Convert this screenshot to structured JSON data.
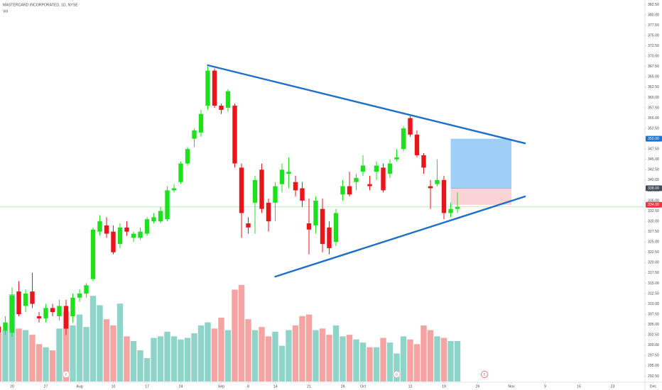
{
  "chart_data": {
    "type": "candlestick",
    "title": "MASTERCARD INCORPORATED, 1D, NYSE",
    "volume_label": "Vol",
    "x": [
      "2020-07-16",
      "2020-07-17",
      "2020-07-20",
      "2020-07-21",
      "2020-07-22",
      "2020-07-23",
      "2020-07-24",
      "2020-07-27",
      "2020-07-28",
      "2020-07-29",
      "2020-07-30",
      "2020-07-31",
      "2020-08-03",
      "2020-08-04",
      "2020-08-05",
      "2020-08-06",
      "2020-08-07",
      "2020-08-10",
      "2020-08-11",
      "2020-08-12",
      "2020-08-13",
      "2020-08-14",
      "2020-08-17",
      "2020-08-18",
      "2020-08-19",
      "2020-08-20",
      "2020-08-21",
      "2020-08-24",
      "2020-08-25",
      "2020-08-26",
      "2020-08-27",
      "2020-08-28",
      "2020-08-31",
      "2020-09-01",
      "2020-09-02",
      "2020-09-03",
      "2020-09-04",
      "2020-09-08",
      "2020-09-09",
      "2020-09-10",
      "2020-09-11",
      "2020-09-14",
      "2020-09-15",
      "2020-09-16",
      "2020-09-17",
      "2020-09-18",
      "2020-09-21",
      "2020-09-22",
      "2020-09-23",
      "2020-09-24",
      "2020-09-25",
      "2020-09-28",
      "2020-09-29",
      "2020-09-30",
      "2020-10-01",
      "2020-10-02",
      "2020-10-05",
      "2020-10-06",
      "2020-10-07",
      "2020-10-08",
      "2020-10-09",
      "2020-10-12",
      "2020-10-13",
      "2020-10-14",
      "2020-10-15",
      "2020-10-16",
      "2020-10-19",
      "2020-10-20",
      "2020-10-21"
    ],
    "open": [
      304.5,
      303.5,
      303,
      313,
      309.5,
      313,
      307,
      306.5,
      309,
      307,
      309.5,
      307,
      311.5,
      312.5,
      316,
      327.5,
      329,
      327.5,
      324.5,
      328.5,
      326,
      326,
      327,
      330,
      330,
      330.5,
      337.5,
      339.5,
      344,
      350,
      351.5,
      358,
      366.5,
      358,
      357.5,
      358,
      343,
      329.5,
      334.5,
      342.5,
      334.5,
      334.5,
      339,
      341.5,
      339.5,
      338,
      329.5,
      329,
      333,
      328.5,
      325,
      336.5,
      338.5,
      339.5,
      342,
      339,
      342,
      343,
      341.5,
      345,
      347.5,
      355,
      351,
      346,
      338.5,
      339,
      340,
      332,
      333
    ],
    "high": [
      306,
      307,
      314,
      315.5,
      313.5,
      317.5,
      308,
      310,
      310,
      311,
      311,
      312.5,
      313.5,
      315,
      328.5,
      331.5,
      331,
      329,
      329.5,
      330,
      327.5,
      328.5,
      331,
      332,
      333.5,
      338.5,
      339,
      344.5,
      348,
      352.5,
      357,
      367.5,
      367,
      358.5,
      362,
      358.5,
      344,
      331,
      341,
      344,
      335.5,
      339.5,
      344,
      345.5,
      341,
      339.5,
      335.5,
      336,
      335.5,
      330,
      333,
      340,
      342,
      341.5,
      346,
      341,
      344.5,
      344,
      345,
      347.5,
      353,
      355.5,
      352,
      346.5,
      340,
      345,
      341,
      334.5,
      337
    ],
    "low": [
      301.5,
      302.5,
      302,
      307,
      308,
      309,
      305.5,
      305.5,
      307,
      306,
      302.5,
      305.5,
      310.5,
      311.5,
      315.5,
      326.5,
      326,
      322,
      323.5,
      326.5,
      325,
      325.5,
      326.5,
      329.5,
      329.5,
      330,
      337,
      339,
      343.5,
      348,
      350.5,
      357,
      357.5,
      356,
      356.5,
      343,
      326,
      327,
      327,
      332,
      327.5,
      330,
      337,
      338,
      336,
      333.5,
      322,
      327,
      322.5,
      322,
      324,
      335,
      336,
      337.5,
      341,
      337.5,
      340,
      337,
      340.5,
      344.5,
      347,
      350.5,
      345.5,
      341.5,
      333,
      338.5,
      330.5,
      331,
      332
    ],
    "close": [
      303,
      305.5,
      312,
      307.5,
      312.5,
      310,
      306.5,
      309,
      308,
      309.5,
      304,
      311.5,
      312.5,
      314.5,
      328,
      330,
      327,
      322.5,
      328.5,
      327.5,
      327,
      327.5,
      330.5,
      331,
      332.5,
      337.5,
      338,
      344,
      347.5,
      352,
      356,
      366.5,
      358,
      357,
      361.5,
      344,
      332,
      328.5,
      340,
      333,
      330,
      338.5,
      342.5,
      342,
      337.5,
      335,
      328,
      335,
      324.5,
      323.5,
      332,
      338.5,
      336.5,
      340.5,
      343.5,
      338.5,
      343.5,
      337.5,
      344,
      345.5,
      352.5,
      351,
      346,
      343,
      338,
      340,
      332,
      333,
      333.5
    ],
    "volume": [
      3.1,
      3.3,
      5.6,
      3.4,
      3.3,
      3.0,
      2.4,
      2.2,
      2.0,
      3.4,
      4.5,
      3.6,
      4.3,
      3.5,
      5.5,
      4.9,
      4.0,
      3.6,
      5.0,
      2.9,
      2.6,
      2.0,
      1.5,
      2.8,
      2.9,
      3.2,
      2.9,
      2.7,
      2.8,
      3.1,
      3.6,
      3.8,
      3.4,
      4.1,
      3.3,
      5.9,
      6.2,
      4.0,
      3.3,
      3.5,
      2.9,
      3.2,
      2.3,
      3.3,
      3.6,
      4.2,
      4.3,
      3.3,
      3.4,
      3.0,
      3.6,
      2.9,
      3.0,
      2.7,
      2.5,
      2.2,
      2.2,
      2.8,
      2.5,
      1.8,
      2.9,
      2.7,
      2.4,
      3.6,
      3.3,
      2.9,
      2.8,
      2.6,
      2.6
    ],
    "volume_lim": [
      0,
      24.5
    ],
    "up_color": "#1ee01e",
    "down_color": "#e8161b",
    "volume_up_color": "#8ed4c9",
    "volume_down_color": "#f5a3a3",
    "ylim": [
      291.2,
      383.6
    ],
    "yticks": [
      {
        "value": 292.5,
        "label": "292.50"
      },
      {
        "value": 295,
        "label": "295.00"
      },
      {
        "value": 297.5,
        "label": "297.50"
      },
      {
        "value": 300,
        "label": "300.00"
      },
      {
        "value": 302.5,
        "label": "302.50"
      },
      {
        "value": 305,
        "label": "305.00"
      },
      {
        "value": 307.5,
        "label": "307.50"
      },
      {
        "value": 310,
        "label": "310.00"
      },
      {
        "value": 312.5,
        "label": "312.50"
      },
      {
        "value": 315,
        "label": "315.00"
      },
      {
        "value": 317.5,
        "label": "317.50"
      },
      {
        "value": 320,
        "label": "320.00"
      },
      {
        "value": 322.5,
        "label": "322.50"
      },
      {
        "value": 325,
        "label": "325.00"
      },
      {
        "value": 327.5,
        "label": "327.50"
      },
      {
        "value": 330,
        "label": "330.00"
      },
      {
        "value": 332.5,
        "label": "332.50"
      },
      {
        "value": 335,
        "label": "335.00"
      },
      {
        "value": 337.5,
        "label": "337.50"
      },
      {
        "value": 340,
        "label": "340.00"
      },
      {
        "value": 342.5,
        "label": "342.50"
      },
      {
        "value": 345,
        "label": "345.00"
      },
      {
        "value": 347.5,
        "label": "347.50"
      },
      {
        "value": 350,
        "label": "350.00"
      },
      {
        "value": 352.5,
        "label": "352.50"
      },
      {
        "value": 355,
        "label": "355.00"
      },
      {
        "value": 357.5,
        "label": "357.50"
      },
      {
        "value": 360,
        "label": "360.00"
      },
      {
        "value": 362.5,
        "label": "362.50"
      },
      {
        "value": 365,
        "label": "365.00"
      },
      {
        "value": 367.5,
        "label": "367.50"
      },
      {
        "value": 370,
        "label": "370.00"
      },
      {
        "value": 372.5,
        "label": "372.50"
      },
      {
        "value": 375,
        "label": "375.00"
      },
      {
        "value": 377.5,
        "label": "377.50"
      },
      {
        "value": 380,
        "label": "380.00"
      },
      {
        "value": 382.5,
        "label": "382.50"
      }
    ],
    "xticks": [
      {
        "value": "2020-07-20",
        "label": "20"
      },
      {
        "value": "2020-07-27",
        "label": "27"
      },
      {
        "value": "2020-08-03",
        "label": "Aug"
      },
      {
        "value": "2020-08-10",
        "label": "10"
      },
      {
        "value": "2020-08-17",
        "label": "17"
      },
      {
        "value": "2020-08-24",
        "label": "24"
      },
      {
        "value": "2020-09-01",
        "label": "Sep"
      },
      {
        "value": "2020-09-08",
        "label": "8"
      },
      {
        "value": "2020-09-14",
        "label": "14"
      },
      {
        "value": "2020-09-21",
        "label": "21"
      },
      {
        "value": "2020-09-28",
        "label": "28"
      },
      {
        "value": "2020-10-01",
        "label": "Oct"
      },
      {
        "value": "2020-10-12",
        "label": "12"
      },
      {
        "value": "2020-10-19",
        "label": "19"
      },
      {
        "value": "2020-10-26",
        "label": "26"
      },
      {
        "value": "2020-11-02",
        "label": "Nov"
      },
      {
        "value": "2020-11-09",
        "label": "9"
      },
      {
        "value": "2020-11-16",
        "label": "16"
      },
      {
        "value": "2020-11-23",
        "label": "23"
      },
      {
        "value": "2020-12-01",
        "label": "Dec"
      }
    ],
    "trendlines": [
      {
        "start": {
          "x": "2020-08-28",
          "y": 367.8
        },
        "end": {
          "x": "2020-11-04",
          "y": 348.9
        },
        "color": "#1f6fc6"
      },
      {
        "start": {
          "x": "2020-09-14",
          "y": 316.6
        },
        "end": {
          "x": "2020-11-04",
          "y": 336.0
        },
        "color": "#1f6fc6"
      }
    ],
    "position": {
      "start": "2020-10-20",
      "end": "2020-11-02",
      "target": {
        "value": 350,
        "label": "350.00"
      },
      "entry": {
        "value": 338,
        "label": "338.00"
      },
      "stop": {
        "value": 334,
        "label": "334.00"
      },
      "target_color": "#9fcff6",
      "stop_color": "#f9d3d5"
    },
    "events": [
      {
        "x": "2020-07-30",
        "label": "E"
      },
      {
        "x": "2020-10-08",
        "label": "D"
      },
      {
        "x": "2020-10-27",
        "label": "E"
      }
    ]
  }
}
